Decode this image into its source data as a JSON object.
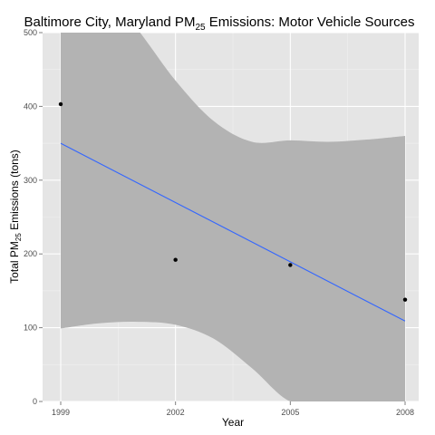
{
  "chart_data": {
    "type": "scatter",
    "title": {
      "prefix": "Baltimore City, Maryland PM",
      "subscript": "25",
      "suffix": " Emissions: Motor Vehicle Sources"
    },
    "xlabel": "Year",
    "ylabel": {
      "prefix": "Total PM",
      "subscript": "25",
      "suffix": " Emissions (tons)"
    },
    "x": [
      1999,
      2002,
      2005,
      2008
    ],
    "y": [
      403,
      192,
      185,
      138
    ],
    "xticks": [
      "1999",
      "2002",
      "2005",
      "2008"
    ],
    "yticks": [
      "0",
      "100",
      "200",
      "300",
      "400",
      "500"
    ],
    "xlim": [
      1999,
      2008
    ],
    "ylim": [
      0,
      500
    ],
    "grid": true,
    "trend_line": {
      "method": "linear",
      "x": [
        1999,
        2008
      ],
      "y": [
        350,
        109
      ]
    },
    "confidence_band": {
      "x": [
        1999,
        2000,
        2001,
        2002,
        2003,
        2004,
        2005,
        2006,
        2007,
        2008
      ],
      "upper": [
        600,
        565,
        505,
        435,
        380,
        352,
        354,
        352,
        355,
        360
      ],
      "lower": [
        99,
        106,
        108,
        104,
        85,
        45,
        0,
        0,
        0,
        0
      ]
    },
    "colors": {
      "panel_background": "#e5e5e5",
      "major_grid": "#ffffff",
      "minor_grid": "#f0f0f0",
      "band": "#b3b3b3",
      "trend_line": "#3366ff",
      "points": "#000000"
    }
  }
}
